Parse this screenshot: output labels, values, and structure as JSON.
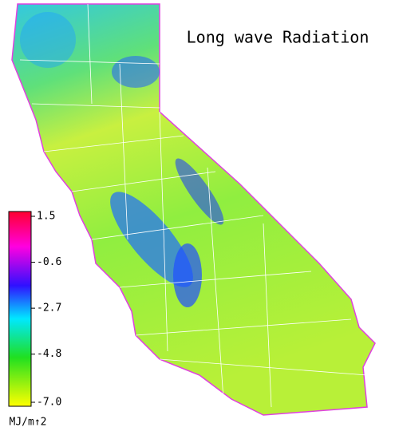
{
  "title": "Long wave Radiation",
  "colorbar": {
    "range": [
      -7,
      1.5
    ],
    "ticks": [
      1.5,
      -0.6,
      -2.7,
      -4.8,
      {
        "value": -7,
        "label": "-7.0"
      }
    ],
    "unit": "MJ/m↑2"
  }
}
